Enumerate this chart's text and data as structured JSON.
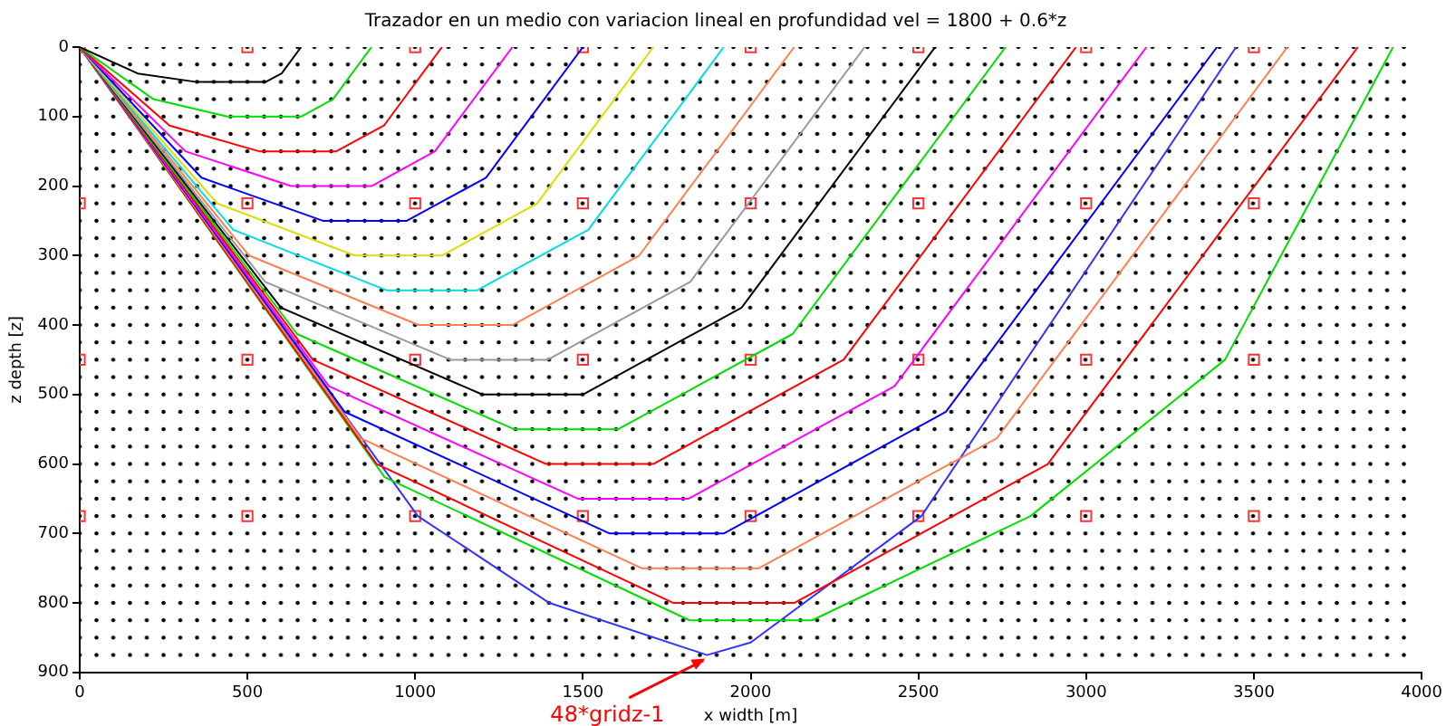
{
  "chart_data": {
    "type": "line",
    "title": "Trazador en un medio con variacion lineal en profundidad vel = 1800 + 0.6*z",
    "xlabel": "x width [m]",
    "ylabel": "z depth [z]",
    "xlim": [
      0,
      4000
    ],
    "xticks": [
      0,
      500,
      1000,
      1500,
      2000,
      2500,
      3000,
      3500,
      4000
    ],
    "ylim": [
      900,
      0
    ],
    "yticks": [
      0,
      100,
      200,
      300,
      400,
      500,
      600,
      700,
      800,
      900
    ],
    "grid": false,
    "legend": false,
    "marker": "none",
    "line_style": "solid",
    "annotations": [
      {
        "text": "48*gridz-1",
        "x": 1870,
        "y": 875
      }
    ],
    "series": [
      {
        "color": "#000000",
        "x": [
          0,
          173,
          345,
          555,
          602,
          660
        ],
        "values": [
          0,
          38,
          50,
          50,
          38,
          0
        ]
      },
      {
        "color": "#00dd00",
        "x": [
          0,
          220,
          440,
          660,
          755,
          870
        ],
        "values": [
          0,
          75,
          100,
          100,
          75,
          0
        ]
      },
      {
        "color": "#ff0000",
        "x": [
          0,
          268,
          535,
          765,
          907,
          1080
        ],
        "values": [
          0,
          113,
          150,
          150,
          113,
          0
        ]
      },
      {
        "color": "#ff00ff",
        "x": [
          0,
          315,
          630,
          870,
          1059,
          1290
        ],
        "values": [
          0,
          150,
          200,
          200,
          150,
          0
        ]
      },
      {
        "color": "#0000ff",
        "x": [
          0,
          363,
          725,
          975,
          1211,
          1500
        ],
        "values": [
          0,
          188,
          250,
          250,
          188,
          0
        ]
      },
      {
        "color": "#dddd00",
        "x": [
          0,
          410,
          820,
          1080,
          1364,
          1710
        ],
        "values": [
          0,
          225,
          300,
          300,
          225,
          0
        ]
      },
      {
        "color": "#00dddd",
        "x": [
          0,
          458,
          915,
          1185,
          1516,
          1920
        ],
        "values": [
          0,
          263,
          350,
          350,
          263,
          0
        ]
      },
      {
        "color": "#ff7f50",
        "x": [
          0,
          505,
          1010,
          1290,
          1668,
          2130
        ],
        "values": [
          0,
          300,
          400,
          400,
          300,
          0
        ]
      },
      {
        "color": "#999999",
        "x": [
          0,
          553,
          1105,
          1395,
          1820,
          2340
        ],
        "values": [
          0,
          338,
          450,
          450,
          338,
          0
        ]
      },
      {
        "color": "#000000",
        "x": [
          0,
          600,
          1200,
          1500,
          1973,
          2550
        ],
        "values": [
          0,
          375,
          500,
          500,
          375,
          0
        ]
      },
      {
        "color": "#00dd00",
        "x": [
          0,
          648,
          1295,
          1605,
          2125,
          2760
        ],
        "values": [
          0,
          413,
          550,
          550,
          413,
          0
        ]
      },
      {
        "color": "#ff0000",
        "x": [
          0,
          695,
          1390,
          1710,
          2277,
          2970
        ],
        "values": [
          0,
          450,
          600,
          600,
          450,
          0
        ]
      },
      {
        "color": "#ff00ff",
        "x": [
          0,
          743,
          1485,
          1815,
          2429,
          3180
        ],
        "values": [
          0,
          488,
          650,
          650,
          488,
          0
        ]
      },
      {
        "color": "#0000ff",
        "x": [
          0,
          790,
          1580,
          1920,
          2582,
          3390
        ],
        "values": [
          0,
          525,
          700,
          700,
          525,
          0
        ]
      },
      {
        "color": "#ff7f50",
        "x": [
          0,
          838,
          1675,
          2025,
          2734,
          3600
        ],
        "values": [
          0,
          563,
          750,
          750,
          563,
          0
        ]
      },
      {
        "color": "#ff0000",
        "x": [
          0,
          885,
          1770,
          2130,
          2886,
          3810
        ],
        "values": [
          0,
          600,
          800,
          800,
          600,
          0
        ]
      },
      {
        "color": "#00dd00",
        "x": [
          0,
          909,
          1818,
          2183,
          2834,
          3414,
          3915
        ],
        "values": [
          0,
          619,
          825,
          825,
          675,
          450,
          0
        ]
      },
      {
        "color": "#3333ff",
        "x": [
          0,
          1008,
          1400,
          1870,
          2000,
          2509,
          3447
        ],
        "values": [
          0,
          675,
          800,
          875,
          857,
          675,
          0
        ]
      },
      {
        "type": "scatter",
        "marker": "square",
        "color": "#ff3333",
        "x": [
          0,
          500,
          1000,
          1500,
          2000,
          2500,
          3000,
          3500,
          0,
          500,
          1000,
          1500,
          2000,
          2500,
          3000,
          3500,
          0,
          500,
          1000,
          1500,
          2000,
          2500,
          3000,
          3500,
          0,
          500,
          1000,
          1500,
          2000,
          2500,
          3000,
          3500
        ],
        "values": [
          0,
          0,
          0,
          0,
          0,
          0,
          0,
          0,
          225,
          225,
          225,
          225,
          225,
          225,
          225,
          225,
          450,
          450,
          450,
          450,
          450,
          450,
          450,
          450,
          675,
          675,
          675,
          675,
          675,
          675,
          675,
          675
        ]
      }
    ]
  }
}
